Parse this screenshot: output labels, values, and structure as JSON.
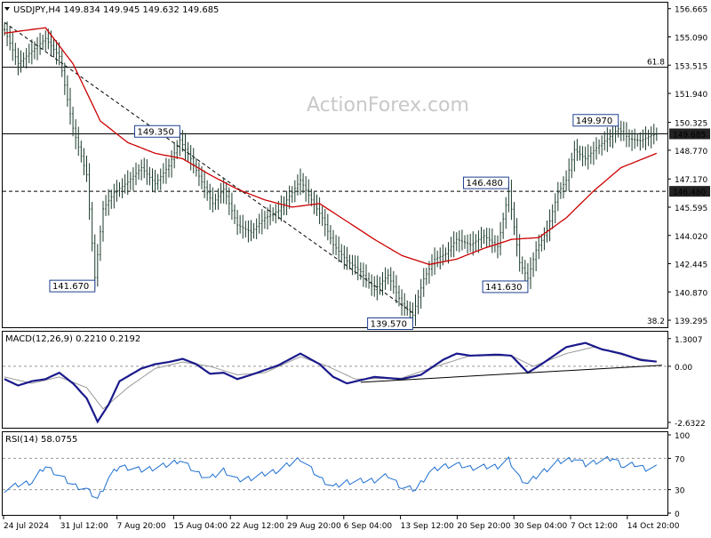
{
  "window": {
    "header_text": "USDJPY,H4  149.834 149.945 149.632 149.685",
    "watermark": "ActionForex.com"
  },
  "chart_data": [
    {
      "type": "candlestick",
      "title": "USDJPY,H4",
      "ohlc_last": {
        "open": 149.834,
        "high": 149.945,
        "low": 149.632,
        "close": 149.685
      },
      "y_ticks": [
        "156.665",
        "155.090",
        "153.515",
        "151.940",
        "150.325",
        "148.770",
        "147.170",
        "145.595",
        "144.020",
        "142.445",
        "140.870",
        "139.295"
      ],
      "ylim": [
        139.0,
        156.9
      ],
      "x_ticks": [
        "24 Jul 2024",
        "31 Jul 12:00",
        "7 Aug 20:00",
        "15 Aug 04:00",
        "22 Aug 12:00",
        "29 Aug 20:00",
        "6 Sep 04:00",
        "13 Sep 12:00",
        "20 Sep 20:00",
        "30 Sep 04:00",
        "7 Oct 12:00",
        "14 Oct 20:00"
      ],
      "price_series": [
        {
          "i": 0,
          "v": 155.5
        },
        {
          "i": 5,
          "v": 153.6
        },
        {
          "i": 10,
          "v": 154.3
        },
        {
          "i": 15,
          "v": 155.0
        },
        {
          "i": 20,
          "v": 154.0
        },
        {
          "i": 25,
          "v": 150.0
        },
        {
          "i": 30,
          "v": 147.4
        },
        {
          "i": 33,
          "v": 141.67
        },
        {
          "i": 36,
          "v": 145.5
        },
        {
          "i": 40,
          "v": 146.4
        },
        {
          "i": 45,
          "v": 147.0
        },
        {
          "i": 50,
          "v": 147.8
        },
        {
          "i": 55,
          "v": 146.9
        },
        {
          "i": 60,
          "v": 147.9
        },
        {
          "i": 64,
          "v": 149.35
        },
        {
          "i": 68,
          "v": 148.3
        },
        {
          "i": 72,
          "v": 147.0
        },
        {
          "i": 76,
          "v": 145.8
        },
        {
          "i": 80,
          "v": 146.6
        },
        {
          "i": 85,
          "v": 144.6
        },
        {
          "i": 90,
          "v": 144.2
        },
        {
          "i": 95,
          "v": 145.0
        },
        {
          "i": 100,
          "v": 145.4
        },
        {
          "i": 104,
          "v": 146.2
        },
        {
          "i": 108,
          "v": 147.1
        },
        {
          "i": 112,
          "v": 146.0
        },
        {
          "i": 116,
          "v": 145.0
        },
        {
          "i": 120,
          "v": 143.5
        },
        {
          "i": 125,
          "v": 142.6
        },
        {
          "i": 130,
          "v": 142.0
        },
        {
          "i": 135,
          "v": 141.0
        },
        {
          "i": 140,
          "v": 141.8
        },
        {
          "i": 145,
          "v": 140.2
        },
        {
          "i": 149,
          "v": 139.57
        },
        {
          "i": 153,
          "v": 141.6
        },
        {
          "i": 157,
          "v": 142.7
        },
        {
          "i": 161,
          "v": 143.0
        },
        {
          "i": 165,
          "v": 143.8
        },
        {
          "i": 170,
          "v": 143.5
        },
        {
          "i": 175,
          "v": 144.0
        },
        {
          "i": 180,
          "v": 143.4
        },
        {
          "i": 184,
          "v": 146.48
        },
        {
          "i": 188,
          "v": 142.5
        },
        {
          "i": 191,
          "v": 141.63
        },
        {
          "i": 194,
          "v": 143.2
        },
        {
          "i": 198,
          "v": 144.3
        },
        {
          "i": 202,
          "v": 146.4
        },
        {
          "i": 205,
          "v": 147.1
        },
        {
          "i": 208,
          "v": 148.8
        },
        {
          "i": 212,
          "v": 148.3
        },
        {
          "i": 216,
          "v": 148.9
        },
        {
          "i": 220,
          "v": 149.4
        },
        {
          "i": 224,
          "v": 149.97
        },
        {
          "i": 228,
          "v": 149.4
        },
        {
          "i": 232,
          "v": 149.3
        },
        {
          "i": 236,
          "v": 149.6
        },
        {
          "i": 238,
          "v": 149.685
        }
      ],
      "ma_series": [
        {
          "i": 0,
          "v": 155.3
        },
        {
          "i": 15,
          "v": 155.6
        },
        {
          "i": 25,
          "v": 153.6
        },
        {
          "i": 35,
          "v": 150.4
        },
        {
          "i": 45,
          "v": 149.2
        },
        {
          "i": 55,
          "v": 148.6
        },
        {
          "i": 65,
          "v": 148.3
        },
        {
          "i": 75,
          "v": 147.4
        },
        {
          "i": 85,
          "v": 146.6
        },
        {
          "i": 95,
          "v": 146.0
        },
        {
          "i": 105,
          "v": 145.6
        },
        {
          "i": 115,
          "v": 145.8
        },
        {
          "i": 125,
          "v": 144.8
        },
        {
          "i": 135,
          "v": 143.8
        },
        {
          "i": 145,
          "v": 142.9
        },
        {
          "i": 155,
          "v": 142.4
        },
        {
          "i": 165,
          "v": 142.7
        },
        {
          "i": 175,
          "v": 143.3
        },
        {
          "i": 185,
          "v": 143.8
        },
        {
          "i": 195,
          "v": 143.9
        },
        {
          "i": 205,
          "v": 145.0
        },
        {
          "i": 215,
          "v": 146.5
        },
        {
          "i": 225,
          "v": 147.8
        },
        {
          "i": 238,
          "v": 148.6
        }
      ],
      "levels": [
        {
          "price": 153.4,
          "style": "solid",
          "label": "61.8"
        },
        {
          "price": 149.685,
          "style": "solid"
        },
        {
          "price": 146.48,
          "style": "dashed"
        }
      ],
      "trendline": [
        {
          "i": 0,
          "v": 155.9
        },
        {
          "i": 150,
          "v": 139.6
        }
      ],
      "annotations": [
        {
          "text": "149.350",
          "i": 64,
          "v": 149.35,
          "pos": "above-left"
        },
        {
          "text": "141.670",
          "i": 33,
          "v": 141.67,
          "pos": "below-left"
        },
        {
          "text": "139.570",
          "i": 149,
          "v": 139.57,
          "pos": "below-left"
        },
        {
          "text": "146.480",
          "i": 184,
          "v": 146.48,
          "pos": "above-left"
        },
        {
          "text": "141.630",
          "i": 191,
          "v": 141.63,
          "pos": "below-left"
        },
        {
          "text": "149.970",
          "i": 224,
          "v": 149.97,
          "pos": "above-left"
        }
      ],
      "axis_badges": [
        {
          "text": "149.685",
          "v": 149.685,
          "dark": true
        },
        {
          "text": "146.480",
          "v": 146.48,
          "dark": true
        }
      ],
      "fib_label_bottom": "38.2"
    },
    {
      "type": "line",
      "title": "MACD(12,26,9) 0.2210 0.2192",
      "y_ticks": [
        "1.3007",
        "0.00",
        "-2.6322"
      ],
      "ylim": [
        -2.8,
        1.5
      ],
      "macd": [
        {
          "i": 0,
          "v": -0.6
        },
        {
          "i": 5,
          "v": -0.9
        },
        {
          "i": 10,
          "v": -0.7
        },
        {
          "i": 15,
          "v": -0.6
        },
        {
          "i": 20,
          "v": -0.3
        },
        {
          "i": 25,
          "v": -0.8
        },
        {
          "i": 30,
          "v": -1.5
        },
        {
          "i": 34,
          "v": -2.6
        },
        {
          "i": 38,
          "v": -1.8
        },
        {
          "i": 42,
          "v": -0.7
        },
        {
          "i": 50,
          "v": -0.1
        },
        {
          "i": 55,
          "v": 0.1
        },
        {
          "i": 60,
          "v": 0.2
        },
        {
          "i": 65,
          "v": 0.35
        },
        {
          "i": 70,
          "v": 0.1
        },
        {
          "i": 75,
          "v": -0.35
        },
        {
          "i": 80,
          "v": -0.3
        },
        {
          "i": 85,
          "v": -0.6
        },
        {
          "i": 90,
          "v": -0.4
        },
        {
          "i": 100,
          "v": 0.05
        },
        {
          "i": 108,
          "v": 0.6
        },
        {
          "i": 115,
          "v": 0.1
        },
        {
          "i": 120,
          "v": -0.5
        },
        {
          "i": 125,
          "v": -0.8
        },
        {
          "i": 135,
          "v": -0.5
        },
        {
          "i": 145,
          "v": -0.6
        },
        {
          "i": 152,
          "v": -0.4
        },
        {
          "i": 160,
          "v": 0.3
        },
        {
          "i": 165,
          "v": 0.6
        },
        {
          "i": 170,
          "v": 0.5
        },
        {
          "i": 180,
          "v": 0.55
        },
        {
          "i": 185,
          "v": 0.5
        },
        {
          "i": 191,
          "v": -0.3
        },
        {
          "i": 196,
          "v": 0.1
        },
        {
          "i": 205,
          "v": 0.9
        },
        {
          "i": 212,
          "v": 1.1
        },
        {
          "i": 218,
          "v": 0.8
        },
        {
          "i": 225,
          "v": 0.6
        },
        {
          "i": 232,
          "v": 0.3
        },
        {
          "i": 238,
          "v": 0.22
        }
      ],
      "signal": [
        {
          "i": 0,
          "v": -0.5
        },
        {
          "i": 10,
          "v": -0.8
        },
        {
          "i": 20,
          "v": -0.5
        },
        {
          "i": 30,
          "v": -1.0
        },
        {
          "i": 36,
          "v": -2.0
        },
        {
          "i": 45,
          "v": -1.0
        },
        {
          "i": 55,
          "v": -0.1
        },
        {
          "i": 65,
          "v": 0.2
        },
        {
          "i": 75,
          "v": 0.0
        },
        {
          "i": 85,
          "v": -0.4
        },
        {
          "i": 95,
          "v": -0.3
        },
        {
          "i": 108,
          "v": 0.45
        },
        {
          "i": 118,
          "v": 0.0
        },
        {
          "i": 128,
          "v": -0.6
        },
        {
          "i": 145,
          "v": -0.55
        },
        {
          "i": 160,
          "v": 0.1
        },
        {
          "i": 170,
          "v": 0.5
        },
        {
          "i": 185,
          "v": 0.5
        },
        {
          "i": 193,
          "v": 0.0
        },
        {
          "i": 205,
          "v": 0.6
        },
        {
          "i": 215,
          "v": 0.9
        },
        {
          "i": 228,
          "v": 0.45
        },
        {
          "i": 238,
          "v": 0.22
        }
      ],
      "trendline": [
        {
          "i": 130,
          "v": -0.75
        },
        {
          "i": 240,
          "v": 0.05
        }
      ]
    },
    {
      "type": "line",
      "title": "RSI(14) 58.0755",
      "y_ticks": [
        "100",
        "70",
        "30",
        "0"
      ],
      "ylim": [
        0,
        100
      ],
      "levels": [
        70,
        30
      ],
      "rsi": [
        {
          "i": 0,
          "v": 30
        },
        {
          "i": 5,
          "v": 36
        },
        {
          "i": 10,
          "v": 40
        },
        {
          "i": 15,
          "v": 60
        },
        {
          "i": 20,
          "v": 48
        },
        {
          "i": 25,
          "v": 36
        },
        {
          "i": 30,
          "v": 30
        },
        {
          "i": 34,
          "v": 18
        },
        {
          "i": 38,
          "v": 45
        },
        {
          "i": 42,
          "v": 60
        },
        {
          "i": 50,
          "v": 55
        },
        {
          "i": 55,
          "v": 58
        },
        {
          "i": 60,
          "v": 62
        },
        {
          "i": 64,
          "v": 68
        },
        {
          "i": 70,
          "v": 52
        },
        {
          "i": 75,
          "v": 44
        },
        {
          "i": 80,
          "v": 55
        },
        {
          "i": 85,
          "v": 42
        },
        {
          "i": 90,
          "v": 45
        },
        {
          "i": 100,
          "v": 55
        },
        {
          "i": 108,
          "v": 70
        },
        {
          "i": 115,
          "v": 45
        },
        {
          "i": 120,
          "v": 33
        },
        {
          "i": 125,
          "v": 40
        },
        {
          "i": 135,
          "v": 42
        },
        {
          "i": 140,
          "v": 48
        },
        {
          "i": 145,
          "v": 33
        },
        {
          "i": 150,
          "v": 30
        },
        {
          "i": 155,
          "v": 52
        },
        {
          "i": 160,
          "v": 60
        },
        {
          "i": 165,
          "v": 62
        },
        {
          "i": 170,
          "v": 58
        },
        {
          "i": 180,
          "v": 60
        },
        {
          "i": 184,
          "v": 68
        },
        {
          "i": 188,
          "v": 45
        },
        {
          "i": 191,
          "v": 38
        },
        {
          "i": 196,
          "v": 52
        },
        {
          "i": 202,
          "v": 65
        },
        {
          "i": 208,
          "v": 70
        },
        {
          "i": 212,
          "v": 62
        },
        {
          "i": 216,
          "v": 66
        },
        {
          "i": 222,
          "v": 70
        },
        {
          "i": 226,
          "v": 60
        },
        {
          "i": 230,
          "v": 62
        },
        {
          "i": 234,
          "v": 57
        },
        {
          "i": 238,
          "v": 58
        }
      ]
    }
  ]
}
